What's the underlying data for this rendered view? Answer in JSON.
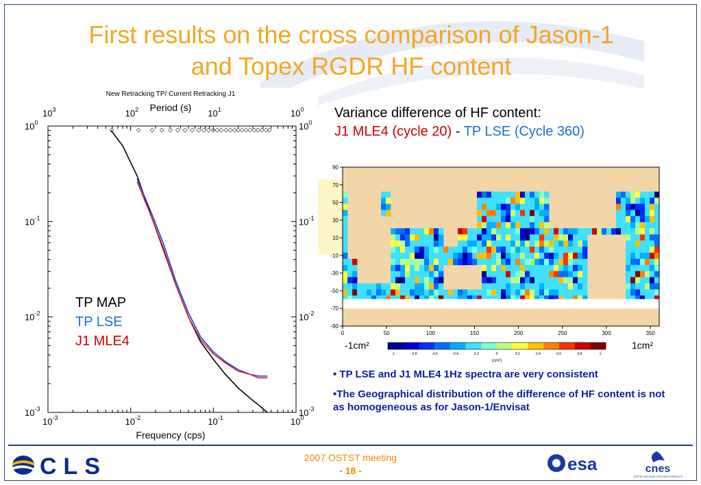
{
  "slide": {
    "title_line1": "First results on the cross comparison of Jason-1",
    "title_line2": "and Topex RGDR HF content",
    "footer_meeting": "2007 OSTST meeting",
    "footer_page": "- 18 -",
    "logos": {
      "cls": "CLS",
      "esa": "esa",
      "cnes": "cnes",
      "cnes_sub": "CENTRE NATIONAL D'ÉTUDES SPATIALES"
    }
  },
  "spectrum_plot": {
    "header": "New Retracking TP/ Current Retracking J1",
    "top_axis_label": "Period (s)",
    "bottom_axis_label": "Frequency (cps)",
    "legend": {
      "tp_map": "TP MAP",
      "tp_lse": "TP LSE",
      "j1_mle4": "J1 MLE4"
    },
    "colors": {
      "tp_map": "#000000",
      "tp_lse": "#1a3fd6",
      "j1_mle4": "#d61a2a"
    }
  },
  "chart_data": {
    "type": "line",
    "x_scale": "log",
    "y_scale": "log",
    "xlim": [
      0.001,
      1
    ],
    "ylim": [
      0.001,
      1
    ],
    "x_ticks": [
      "10^-3",
      "10^-2",
      "10^-1",
      "10^0"
    ],
    "y_ticks": [
      "10^0",
      "10^-1",
      "10^-2",
      "10^-3"
    ],
    "top_ticks": [
      "10^3",
      "10^2",
      "10^1",
      "10^0"
    ],
    "series": [
      {
        "name": "TP MAP",
        "color": "#000000",
        "x": [
          0.0058,
          0.008,
          0.012,
          0.018,
          0.025,
          0.035,
          0.05,
          0.07,
          0.1,
          0.14,
          0.2,
          0.28,
          0.35,
          0.45
        ],
        "y": [
          0.9,
          0.62,
          0.3,
          0.11,
          0.05,
          0.022,
          0.01,
          0.0055,
          0.0036,
          0.0025,
          0.0018,
          0.0014,
          0.0012,
          0.001
        ]
      },
      {
        "name": "TP LSE",
        "color": "#1a3fd6",
        "x": [
          0.012,
          0.018,
          0.025,
          0.035,
          0.05,
          0.07,
          0.1,
          0.14,
          0.2,
          0.28,
          0.35,
          0.45
        ],
        "y": [
          0.28,
          0.12,
          0.058,
          0.024,
          0.011,
          0.0062,
          0.0043,
          0.0034,
          0.0028,
          0.0025,
          0.0024,
          0.0024
        ]
      },
      {
        "name": "J1 MLE4",
        "color": "#d61a2a",
        "x": [
          0.012,
          0.018,
          0.025,
          0.035,
          0.05,
          0.07,
          0.1,
          0.14,
          0.2,
          0.28,
          0.35,
          0.45
        ],
        "y": [
          0.26,
          0.11,
          0.052,
          0.022,
          0.01,
          0.0058,
          0.0041,
          0.0033,
          0.0027,
          0.0025,
          0.0023,
          0.0023
        ]
      }
    ],
    "period_markers_s": [
      170,
      80,
      55,
      42,
      33,
      27,
      22,
      18,
      15,
      13,
      11.5,
      10,
      9,
      8,
      7,
      6.2,
      5.5,
      5,
      4.5,
      4,
      3.6,
      3.2,
      2.9,
      2.6,
      2.3,
      2.1
    ]
  },
  "map_panel": {
    "title_line1": "Variance difference of HF content:",
    "title_part_red": "J1 MLE4 (cycle 20)",
    "title_sep": " - ",
    "title_part_blue": "TP LSE (Cycle 360)",
    "lat_ticks": [
      "90",
      "70",
      "50",
      "30",
      "10",
      "-10",
      "-30",
      "-50",
      "-70",
      "-90"
    ],
    "lon_ticks": [
      "0",
      "50",
      "100",
      "150",
      "200",
      "250",
      "300",
      "350"
    ],
    "colorbar_min": "-1cm²",
    "colorbar_max": "1cm²",
    "colorbar_ticks": [
      "-1",
      "-0.8",
      "-0.6",
      "-0.4",
      "-0.2",
      "0",
      "0.2",
      "0.4",
      "0.6",
      "0.8",
      "1"
    ],
    "colorbar_unit": "(cm²)",
    "colorbar_colors": [
      "#00008f",
      "#0000d0",
      "#0030ff",
      "#0070ff",
      "#00b0ff",
      "#40e0ff",
      "#80ffd0",
      "#c0ff80",
      "#ffff40",
      "#ffc000",
      "#ff8000",
      "#ff3000",
      "#d00000",
      "#800000"
    ]
  },
  "bullets": [
    "• TP LSE and J1 MLE4 1Hz spectra are very consistent",
    "•The Geographical distribution of the difference of HF content is not as homogeneous as for Jason-1/Envisat"
  ]
}
